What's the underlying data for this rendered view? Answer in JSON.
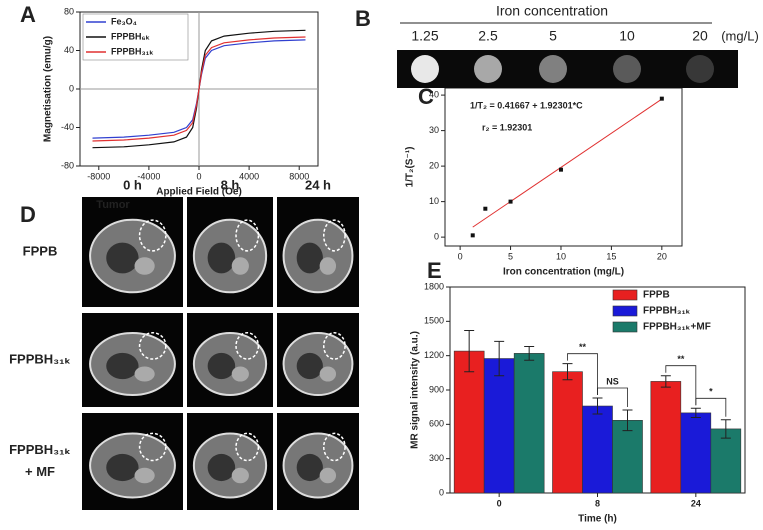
{
  "panel_labels": [
    "A",
    "B",
    "C",
    "D",
    "E"
  ],
  "chart_data": [
    {
      "type": "line",
      "x_label": "Applied Field (Oe)",
      "y_label": "Magnetisation (emu/g)",
      "x": [
        -8500,
        -6000,
        -4000,
        -2000,
        -1000,
        -500,
        -200,
        0,
        200,
        500,
        1000,
        2000,
        4000,
        6000,
        8500
      ],
      "series": [
        {
          "name": "Fe₃O₄",
          "color": "#3040d0",
          "values": [
            -51,
            -50,
            -48,
            -45,
            -40,
            -32,
            -15,
            0,
            15,
            32,
            40,
            45,
            48,
            50,
            51
          ]
        },
        {
          "name": "FPPBH₆ₖ",
          "color": "#111111",
          "values": [
            -61,
            -60,
            -58,
            -55,
            -50,
            -40,
            -20,
            0,
            20,
            40,
            50,
            55,
            58,
            60,
            61
          ]
        },
        {
          "name": "FPPBH₃₁ₖ",
          "color": "#e03030",
          "values": [
            -54,
            -53,
            -51,
            -48,
            -43,
            -35,
            -17,
            0,
            17,
            35,
            43,
            48,
            51,
            53,
            54
          ]
        }
      ],
      "xlim": [
        -9500,
        9500
      ],
      "xticks": [
        -8000,
        -4000,
        0,
        4000,
        8000
      ],
      "ylim": [
        -80,
        80
      ],
      "yticks": [
        -80,
        -40,
        0,
        40,
        80
      ],
      "legend": "upper left"
    },
    {
      "type": "scatter",
      "x_label": "Iron concentration (mg/L)",
      "y_label": "1/T₂(S⁻¹)",
      "x": [
        1.25,
        2.5,
        5,
        10,
        20
      ],
      "values": [
        0.5,
        8,
        10,
        19,
        39
      ],
      "color": "#111111",
      "fit": {
        "intercept": 0.41667,
        "slope": 1.92301,
        "color": "#e03030"
      },
      "annotations": [
        "1/T₂ = 0.41667 + 1.92301*C",
        "r₂ = 1.92301"
      ],
      "xlim": [
        -1.5,
        22
      ],
      "xticks": [
        0,
        5,
        10,
        15,
        20
      ],
      "ylim": [
        -2.5,
        42
      ],
      "yticks": [
        0,
        10,
        20,
        30,
        40
      ]
    },
    {
      "type": "bar",
      "x_label": "Time (h)",
      "y_label": "MR signal intensity (a.u.)",
      "categories": [
        "0",
        "8",
        "24"
      ],
      "series": [
        {
          "name": "FPPB",
          "color": "#e82020",
          "values": [
            1240,
            1060,
            975
          ],
          "errors": [
            180,
            70,
            50
          ]
        },
        {
          "name": "FPPBH₃₁ₖ",
          "color": "#1a1ad8",
          "values": [
            1175,
            760,
            700
          ],
          "errors": [
            150,
            70,
            40
          ]
        },
        {
          "name": "FPPBH₃₁ₖ+MF",
          "color": "#1b7a6a",
          "values": [
            1220,
            635,
            560
          ],
          "errors": [
            60,
            90,
            80
          ]
        }
      ],
      "annotations": [
        "**",
        "NS",
        "**",
        "*"
      ],
      "ylim": [
        0,
        1800
      ],
      "yticks": [
        0,
        300,
        600,
        900,
        1200,
        1500,
        1800
      ],
      "legend": "upper right"
    }
  ],
  "phantom": {
    "title": "Iron concentration",
    "labels": [
      "1.25",
      "2.5",
      "5",
      "10",
      "20"
    ],
    "unit": "(mg/L)"
  },
  "mri": {
    "columns": [
      "0 h",
      "8 h",
      "24 h"
    ],
    "tumor_label": "Tumor",
    "rows": [
      [
        "FPPB"
      ],
      [
        "FPPBH₃₁ₖ"
      ],
      [
        "FPPBH₃₁ₖ",
        "+ MF"
      ]
    ]
  }
}
